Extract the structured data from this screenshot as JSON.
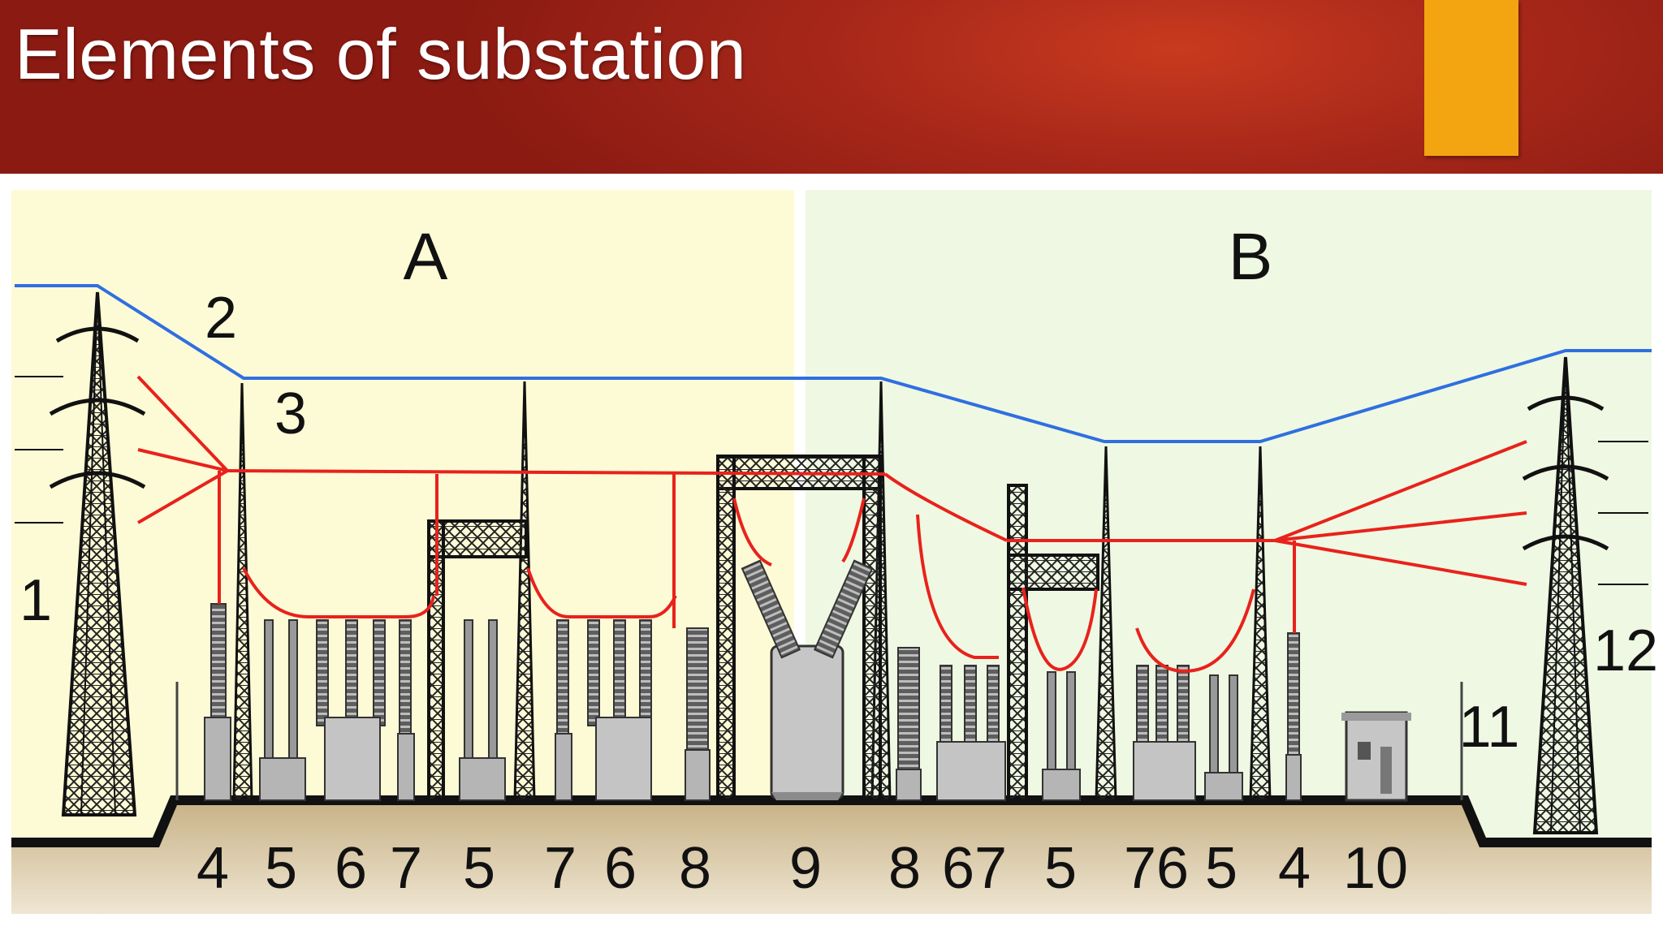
{
  "slide": {
    "title": "Elements of substation"
  },
  "colors": {
    "header": "#a8281a",
    "accent": "#f3a411",
    "zone_a_bg": "#fdfbd6",
    "zone_b_bg": "#eff8e2",
    "ground": "#c9b48c",
    "sky_wire": "#2f6fe0",
    "conductor": "#e8221c"
  },
  "diagram": {
    "zones": [
      "A",
      "B"
    ],
    "callouts": [
      "1",
      "2",
      "3",
      "11",
      "12"
    ],
    "bottom_labels": [
      "4",
      "5",
      "6",
      "7",
      "5",
      "7",
      "6",
      "8",
      "9",
      "8",
      "67",
      "5",
      "76",
      "5",
      "4",
      "10"
    ]
  }
}
